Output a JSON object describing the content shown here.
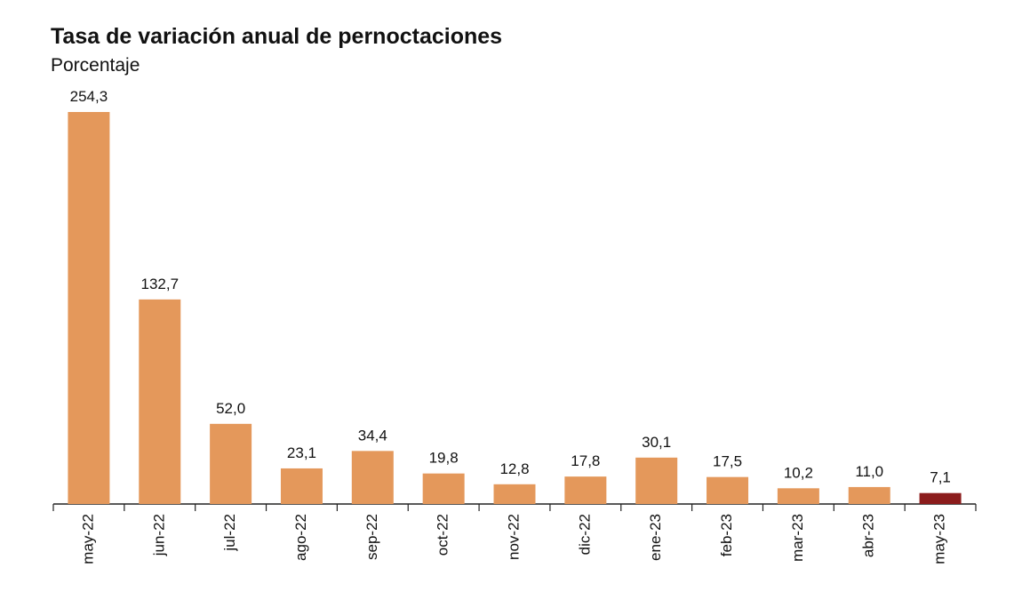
{
  "chart_data": {
    "type": "bar",
    "title": "Tasa de variación anual de pernoctaciones",
    "subtitle": "Porcentaje",
    "categories": [
      "may-22",
      "jun-22",
      "jul-22",
      "ago-22",
      "sep-22",
      "oct-22",
      "nov-22",
      "dic-22",
      "ene-23",
      "feb-23",
      "mar-23",
      "abr-23",
      "may-23"
    ],
    "values": [
      254.3,
      132.7,
      52.0,
      23.1,
      34.4,
      19.8,
      12.8,
      17.8,
      30.1,
      17.5,
      10.2,
      11.0,
      7.1
    ],
    "value_labels": [
      "254,3",
      "132,7",
      "52,0",
      "23,1",
      "34,4",
      "19,8",
      "12,8",
      "17,8",
      "30,1",
      "17,5",
      "10,2",
      "11,0",
      "7,1"
    ],
    "colors": [
      "#e4985b",
      "#e4985b",
      "#e4985b",
      "#e4985b",
      "#e4985b",
      "#e4985b",
      "#e4985b",
      "#e4985b",
      "#e4985b",
      "#e4985b",
      "#e4985b",
      "#e4985b",
      "#8b1c1c"
    ]
  }
}
